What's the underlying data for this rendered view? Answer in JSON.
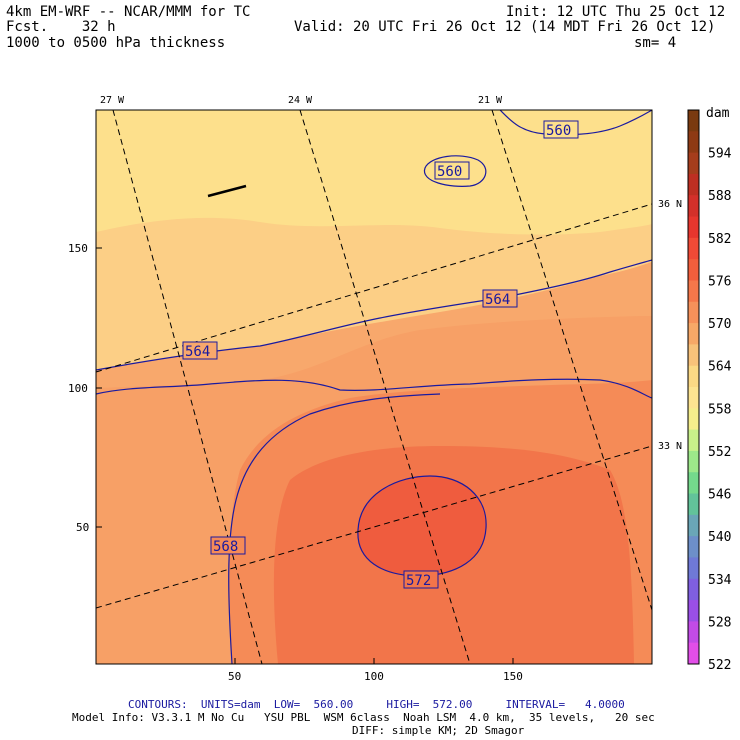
{
  "header": {
    "model": "4km EM-WRF -- NCAR/MMM for TC",
    "fcst": "Fcst.    32 h",
    "field": "1000 to 0500 hPa thickness",
    "init": "Init: 12 UTC Thu 25 Oct 12",
    "valid": "Valid: 20 UTC Fri 26 Oct 12 (14 MDT Fri 26 Oct 12)",
    "sm": "sm= 4"
  },
  "map": {
    "lon_labels": [
      "27 W",
      "24 W",
      "21 W"
    ],
    "lat_labels": [
      "36 N",
      "33 N"
    ],
    "y_ticks": [
      "150",
      "100",
      "50"
    ],
    "x_ticks": [
      "50",
      "100",
      "150"
    ],
    "contour_labels": [
      "560",
      "560",
      "564",
      "564",
      "568",
      "572"
    ],
    "wind_barb": "wind-barb"
  },
  "colorbar": {
    "unit": "dam",
    "levels": [
      "594",
      "588",
      "582",
      "576",
      "570",
      "564",
      "558",
      "552",
      "546",
      "540",
      "534",
      "528",
      "522"
    ],
    "colors": [
      "#7a3a10",
      "#8e3a14",
      "#a53d1c",
      "#bd2f22",
      "#d3302a",
      "#e6362e",
      "#f04a36",
      "#f25e3c",
      "#f5774a",
      "#f6915a",
      "#f7a867",
      "#f8c27a",
      "#fbd985",
      "#fde491",
      "#f5ee8c",
      "#c8f08a",
      "#9de88a",
      "#74d98c",
      "#62c39a",
      "#6aa6b7",
      "#6d8fc9",
      "#6f79d6",
      "#7f5fe0",
      "#9a4fe6",
      "#c24be6",
      "#e24ee8"
    ]
  },
  "footer": {
    "contours_label": "CONTOURS:",
    "units": "UNITS=dam",
    "low": "LOW=  560.00",
    "high": "HIGH=  572.00",
    "interval": "INTERVAL=   4.0000",
    "model_info": "Model Info: V3.3.1 M No Cu   YSU PBL  WSM 6class  Noah LSM  4.0 km,  35 levels,   20 sec",
    "diff": "DIFF: simple KM; 2D Smagor"
  }
}
